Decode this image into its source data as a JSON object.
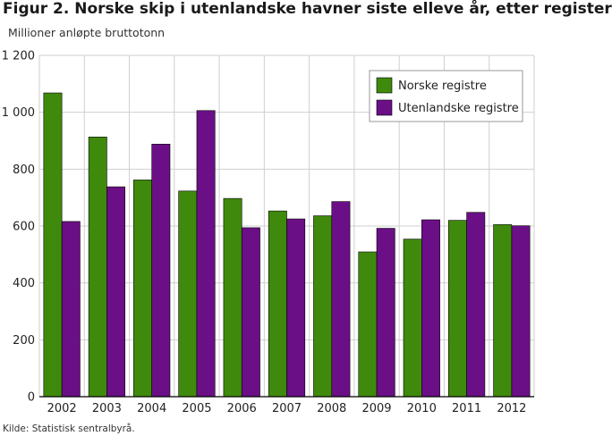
{
  "title": "Figur 2. Norske skip i utenlandske havner siste elleve år, etter register",
  "subtitle": "Millioner anløpte bruttotonn",
  "source": "Kilde: Statistisk sentralbyrå.",
  "colors": {
    "series0": "#3f8a0c",
    "series1": "#6b0f87",
    "grid": "#cfcfcf",
    "axis": "#000000"
  },
  "chart_data": {
    "type": "bar",
    "categories": [
      "2002",
      "2003",
      "2004",
      "2005",
      "2006",
      "2007",
      "2008",
      "2009",
      "2010",
      "2011",
      "2012"
    ],
    "series": [
      {
        "name": "Norske registre",
        "values": [
          1068,
          913,
          762,
          723,
          697,
          653,
          636,
          509,
          554,
          620,
          605
        ]
      },
      {
        "name": "Utenlandske registre",
        "values": [
          616,
          738,
          888,
          1006,
          594,
          625,
          686,
          592,
          622,
          648,
          601
        ]
      }
    ],
    "ylim": [
      0,
      1200
    ],
    "yticks": [
      0,
      200,
      400,
      600,
      800,
      1000,
      1200
    ],
    "ytick_labels": [
      "0",
      "200",
      "400",
      "600",
      "800",
      "1 000",
      "1 200"
    ],
    "grid": true,
    "legend_position": "top-right"
  }
}
